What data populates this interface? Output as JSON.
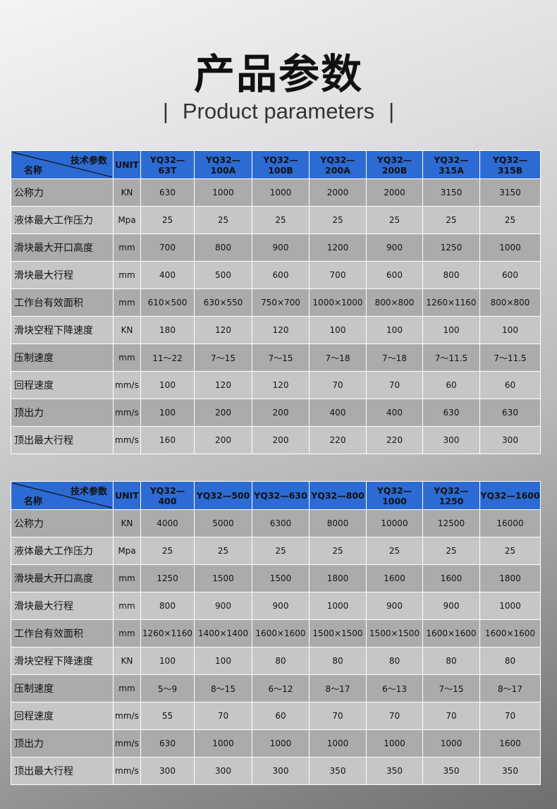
{
  "title": "产品参数",
  "subtitle": "Product parameters",
  "corner": {
    "top": "技术参数",
    "bottom": "名称"
  },
  "unit_header": "UNIT",
  "row_names": [
    "公称力",
    "液体最大工作压力",
    "滑块最大开口高度",
    "滑块最大行程",
    "工作台有效面积",
    "滑块空程下降速度",
    "压制速度",
    "回程速度",
    "顶出力",
    "顶出最大行程"
  ],
  "units": [
    "KN",
    "Mpa",
    "mm",
    "mm",
    "mm",
    "KN",
    "mm",
    "mm/s",
    "mm/s",
    "mm/s"
  ],
  "colors": {
    "header": "#2d6bd4",
    "row_dark": "#ababab",
    "row_light": "#c6c6c6"
  },
  "tables": [
    {
      "models": [
        "YQ32—63T",
        "YQ32—100A",
        "YQ32—100B",
        "YQ32—200A",
        "YQ32—200B",
        "YQ32—315A",
        "YQ32—315B"
      ],
      "rows": [
        [
          "630",
          "1000",
          "1000",
          "2000",
          "2000",
          "3150",
          "3150"
        ],
        [
          "25",
          "25",
          "25",
          "25",
          "25",
          "25",
          "25"
        ],
        [
          "700",
          "800",
          "900",
          "1200",
          "900",
          "1250",
          "1000"
        ],
        [
          "400",
          "500",
          "600",
          "700",
          "600",
          "800",
          "600"
        ],
        [
          "610×500",
          "630×550",
          "750×700",
          "1000×1000",
          "800×800",
          "1260×1160",
          "800×800"
        ],
        [
          "180",
          "120",
          "120",
          "100",
          "100",
          "100",
          "100"
        ],
        [
          "11～22",
          "7～15",
          "7～15",
          "7～18",
          "7～18",
          "7～11.5",
          "7～11.5"
        ],
        [
          "100",
          "120",
          "120",
          "70",
          "70",
          "60",
          "60"
        ],
        [
          "100",
          "200",
          "200",
          "400",
          "400",
          "630",
          "630"
        ],
        [
          "160",
          "200",
          "200",
          "220",
          "220",
          "300",
          "300"
        ]
      ]
    },
    {
      "models": [
        "YQ32—400",
        "YQ32—500",
        "YQ32—630",
        "YQ32—800",
        "YQ32—1000",
        "YQ32—1250",
        "YQ32—1600"
      ],
      "rows": [
        [
          "4000",
          "5000",
          "6300",
          "8000",
          "10000",
          "12500",
          "16000"
        ],
        [
          "25",
          "25",
          "25",
          "25",
          "25",
          "25",
          "25"
        ],
        [
          "1250",
          "1500",
          "1500",
          "1800",
          "1600",
          "1600",
          "1800"
        ],
        [
          "800",
          "900",
          "900",
          "1000",
          "900",
          "900",
          "1000"
        ],
        [
          "1260×1160",
          "1400×1400",
          "1600×1600",
          "1500×1500",
          "1500×1500",
          "1600×1600",
          "1600×1600"
        ],
        [
          "100",
          "100",
          "80",
          "80",
          "80",
          "80",
          "80"
        ],
        [
          "5～9",
          "8～15",
          "6～12",
          "8～17",
          "6～13",
          "7～15",
          "8～17"
        ],
        [
          "55",
          "70",
          "60",
          "70",
          "70",
          "70",
          "70"
        ],
        [
          "630",
          "1000",
          "1000",
          "1000",
          "1000",
          "1000",
          "1600"
        ],
        [
          "300",
          "300",
          "300",
          "350",
          "350",
          "350",
          "350"
        ]
      ]
    }
  ]
}
